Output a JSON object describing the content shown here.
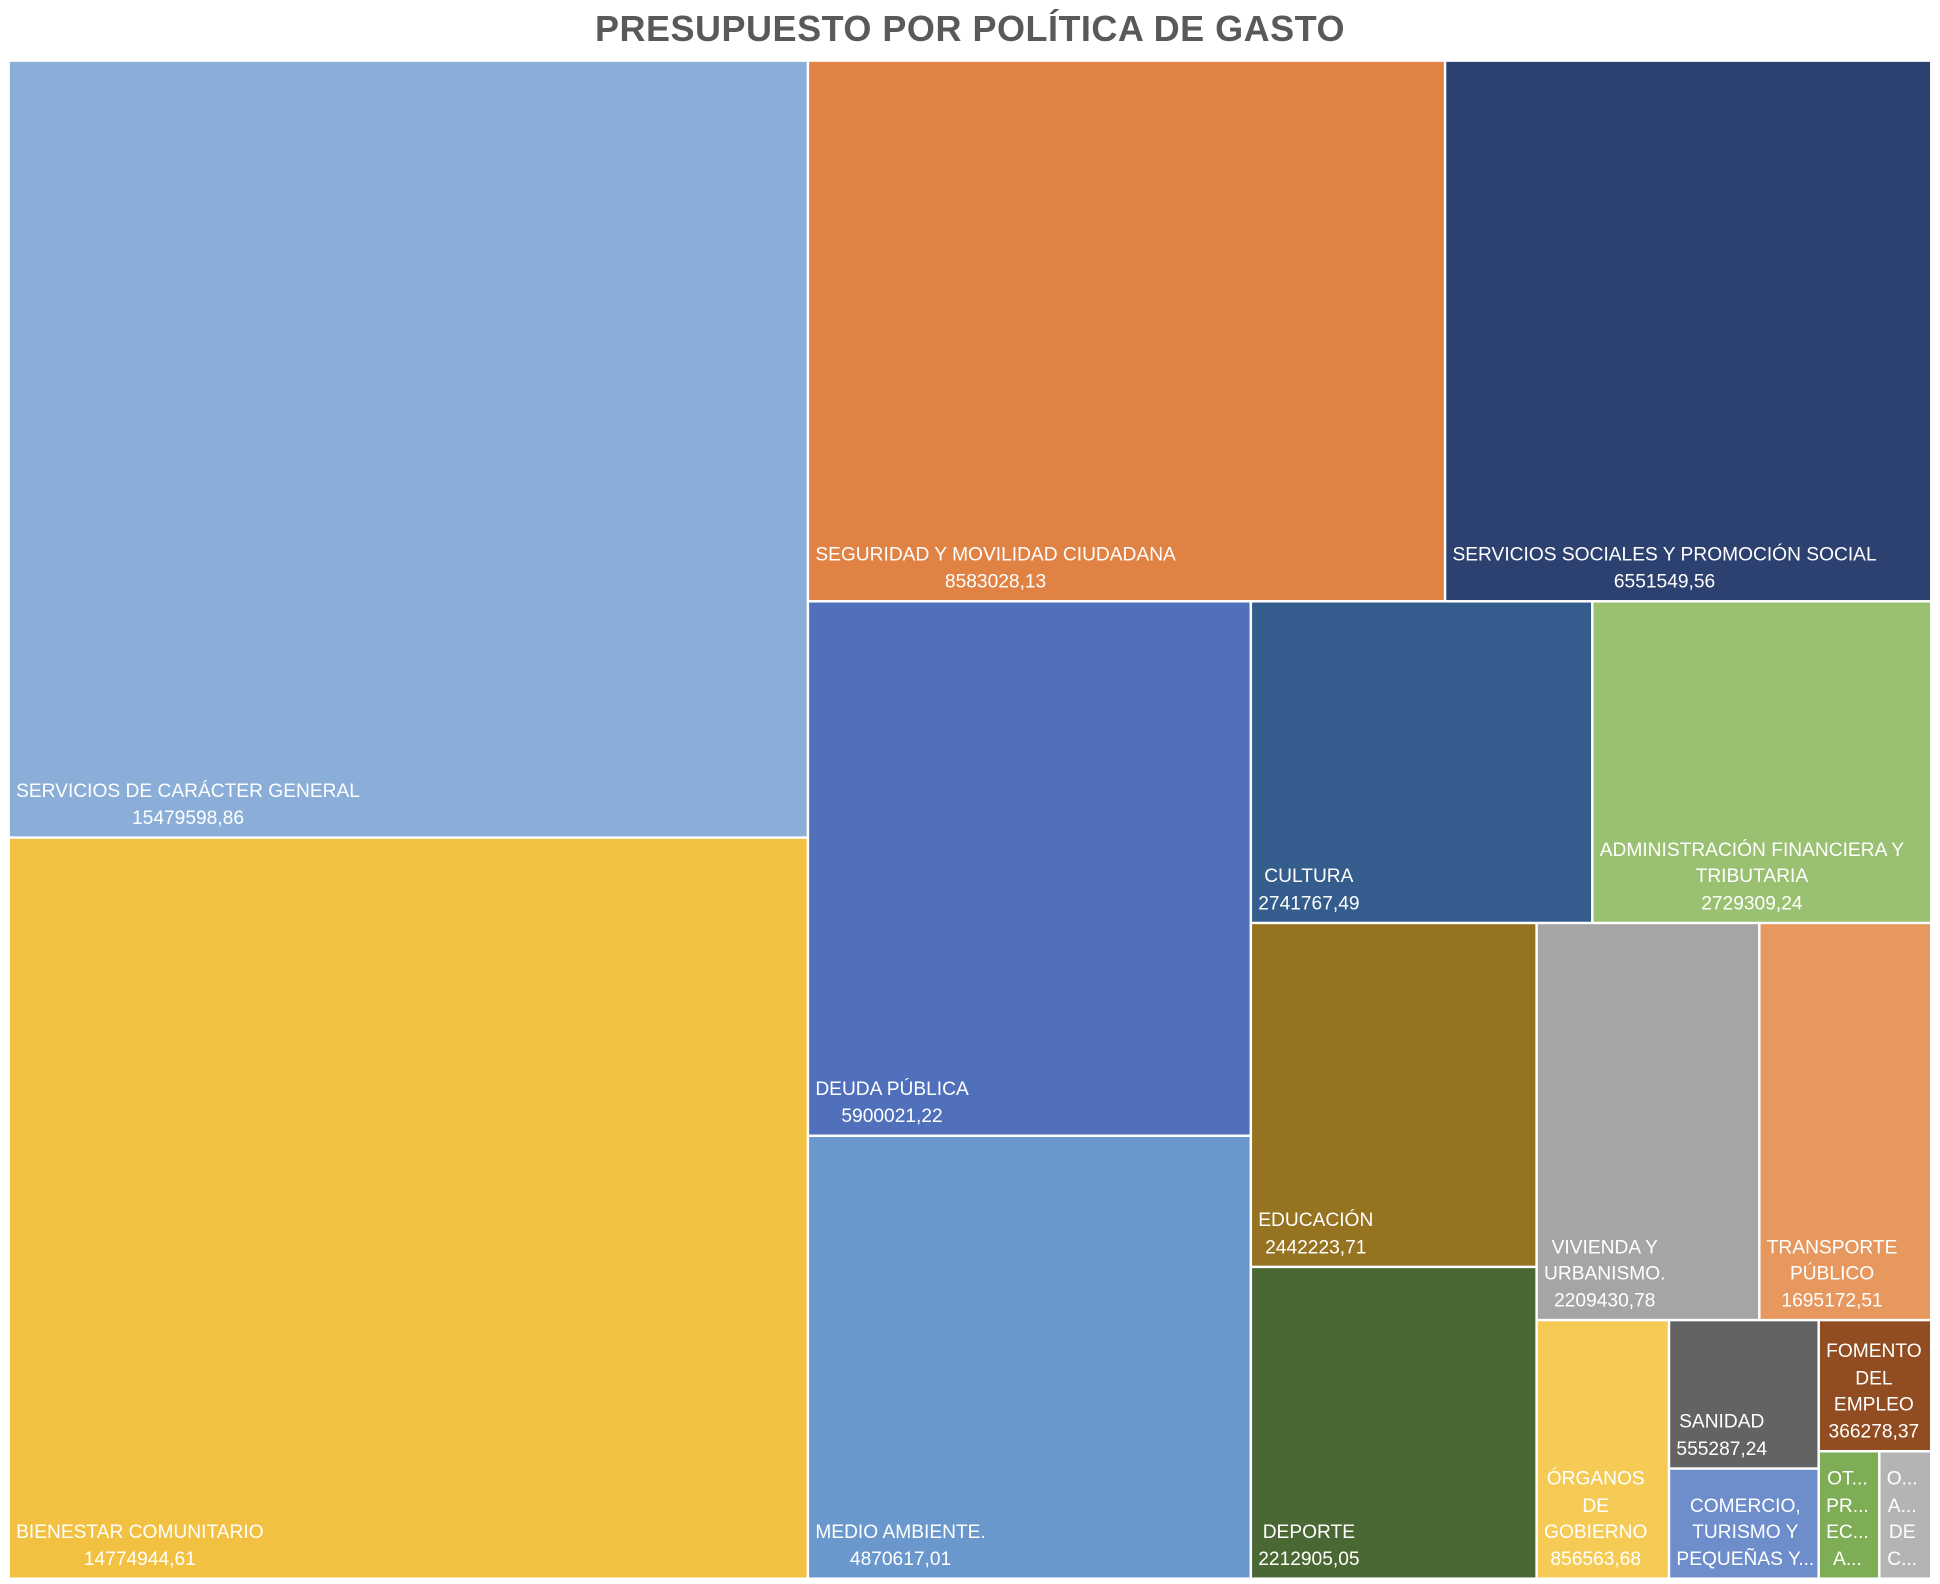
{
  "chart_data": {
    "type": "treemap",
    "title": "PRESUPUESTO POR POLÍTICA DE GASTO",
    "items": [
      {
        "label": "SERVICIOS DE CARÁCTER GENERAL",
        "value": "15479598,86",
        "color": "#8AAED8"
      },
      {
        "label": "BIENESTAR COMUNITARIO",
        "value": "14774944,61",
        "color": "#F2C142"
      },
      {
        "label": "SEGURIDAD Y MOVILIDAD CIUDADANA",
        "value": "8583028,13",
        "color": "#DF8244"
      },
      {
        "label": "SERVICIOS SOCIALES Y PROMOCIÓN SOCIAL",
        "value": "6551549,56",
        "color": "#2C4170"
      },
      {
        "label": "DEUDA PÚBLICA",
        "value": "5900021,22",
        "color": "#5070BC"
      },
      {
        "label": "MEDIO AMBIENTE.",
        "value": "4870617,01",
        "color": "#6A98CC"
      },
      {
        "label": "CULTURA",
        "value": "2741767,49",
        "color": "#345C8C"
      },
      {
        "label": "ADMINISTRACIÓN FINANCIERA Y\nTRIBUTARIA",
        "value": "2729309,24",
        "color": "#9AC172"
      },
      {
        "label": "EDUCACIÓN",
        "value": "2442223,71",
        "color": "#957321"
      },
      {
        "label": "DEPORTE",
        "value": "2212905,05",
        "color": "#4A6833"
      },
      {
        "label": "VIVIENDA Y\nURBANISMO.",
        "value": "2209430,78",
        "color": "#A5A5A5"
      },
      {
        "label": "TRANSPORTE\nPÚBLICO",
        "value": "1695172,51",
        "color": "#E6985F"
      },
      {
        "label": "ÓRGANOS\nDE\nGOBIERNO",
        "value": "856563,68",
        "color": "#F5CB55"
      },
      {
        "label": "SANIDAD",
        "value": "555287,24",
        "color": "#636363"
      },
      {
        "label": "COMERCIO,\nTURISMO Y\nPEQUEÑAS Y...",
        "value": "",
        "color": "#6E8DCB"
      },
      {
        "label": "FOMENTO\nDEL\nEMPLEO",
        "value": "366278,37",
        "color": "#914D21"
      },
      {
        "label": "OT...\nPR...\nEC...\nA...",
        "value": "",
        "color": "#7EAD56"
      },
      {
        "label": "O...\nA...\nDE\nC...",
        "value": "",
        "color": "#B4B4B4"
      }
    ]
  }
}
